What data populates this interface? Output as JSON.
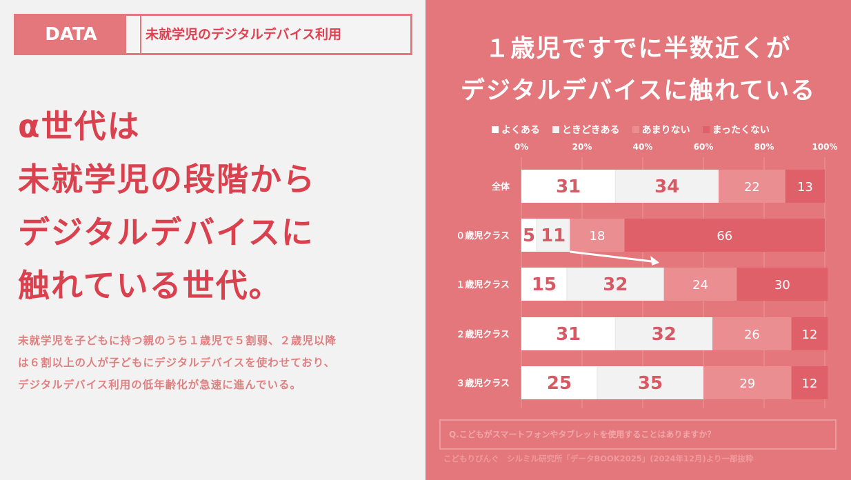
{
  "header": {
    "tag": "DATA",
    "title": "未就学児のデジタルデバイス利用"
  },
  "headline": [
    "α世代は",
    "未就学児の段階から",
    "デジタルデバイスに",
    "触れている世代。"
  ],
  "body": [
    "未就学児を子どもに持つ親のうち１歳児で５割弱、２歳児以降",
    "は６割以上の人が子どもにデジタルデバイスを使わせており、",
    "デジタルデバイス利用の低年齢化が急速に進んでいる。"
  ],
  "right_title": [
    "１歳児ですでに半数近くが",
    "デジタルデバイスに触れている"
  ],
  "question": "Q.こどもがスマートフォンやタブレットを使用することはありますか？",
  "source": "こどもりびんぐ　シルミル研究所「データBOOK2025」(2024年12月)より一部抜粋",
  "colors": {
    "accent": "#e4777b",
    "text_red": "#d9414e",
    "s1": "#ffffff",
    "s2": "#f2f2f2",
    "s3": "#eb8e91",
    "s4": "#e0606a",
    "label_dark": "#d65a64"
  },
  "chart_data": {
    "type": "bar",
    "orientation": "horizontal",
    "stacked": true,
    "categories": [
      "全体",
      "０歳児クラス",
      "１歳児クラス",
      "２歳児クラス",
      "３歳児クラス"
    ],
    "series": [
      {
        "name": "よくある",
        "values": [
          31,
          5,
          15,
          31,
          25
        ]
      },
      {
        "name": "ときどきある",
        "values": [
          34,
          11,
          32,
          32,
          35
        ]
      },
      {
        "name": "あまりない",
        "values": [
          22,
          18,
          24,
          26,
          29
        ]
      },
      {
        "name": "まったくない",
        "values": [
          13,
          66,
          30,
          12,
          12
        ]
      }
    ],
    "xticks": [
      "0%",
      "20%",
      "40%",
      "60%",
      "80%",
      "100%"
    ],
    "xlim": [
      0,
      100
    ],
    "grid": true,
    "legend": "top"
  }
}
